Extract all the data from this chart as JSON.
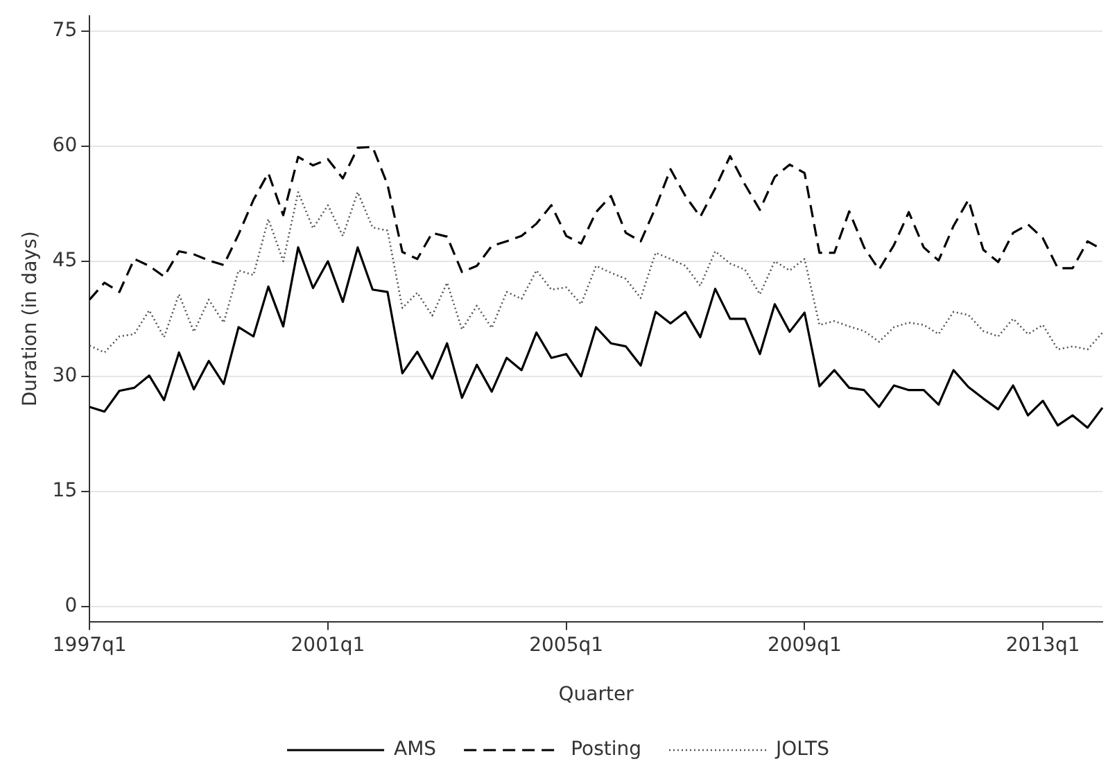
{
  "chart_data": {
    "type": "line",
    "xlabel": "Quarter",
    "ylabel": "Duration (in days)",
    "categories": [
      "1997q1",
      null,
      null,
      null,
      null,
      null,
      null,
      null,
      null,
      null,
      null,
      null,
      null,
      null,
      null,
      null,
      "2001q1",
      null,
      null,
      null,
      null,
      null,
      null,
      null,
      null,
      null,
      null,
      null,
      null,
      null,
      null,
      null,
      "2005q1",
      null,
      null,
      null,
      null,
      null,
      null,
      null,
      null,
      null,
      null,
      null,
      null,
      null,
      null,
      null,
      "2009q1",
      null,
      null,
      null,
      null,
      null,
      null,
      null,
      null,
      null,
      null,
      null,
      null,
      null,
      null,
      null,
      "2013q1",
      null,
      null,
      null,
      null
    ],
    "series": [
      {
        "name": "AMS",
        "color": "#000000",
        "line_style": "solid",
        "values": [
          26.0,
          25.4,
          28.1,
          28.5,
          30.1,
          26.9,
          33.1,
          28.3,
          32.0,
          29.0,
          36.4,
          35.2,
          41.7,
          36.5,
          46.8,
          41.5,
          45.0,
          39.7,
          46.8,
          41.3,
          41.0,
          30.4,
          33.2,
          29.7,
          34.3,
          27.2,
          31.5,
          28.0,
          32.4,
          30.8,
          35.7,
          32.4,
          32.9,
          30.0,
          36.4,
          34.3,
          33.9,
          31.4,
          38.4,
          36.9,
          38.4,
          35.1,
          41.4,
          37.5,
          37.5,
          32.9,
          39.4,
          35.8,
          38.3,
          28.7,
          30.8,
          28.5,
          28.2,
          26.0,
          28.8,
          28.2,
          28.2,
          26.3,
          30.8,
          28.6,
          27.1,
          25.7,
          28.8,
          24.9,
          26.8,
          23.6,
          24.9,
          23.3,
          25.9
        ]
      },
      {
        "name": "Posting",
        "color": "#000000",
        "line_style": "dashed",
        "values": [
          40.0,
          42.2,
          41.0,
          45.3,
          44.4,
          43.0,
          46.3,
          45.9,
          45.1,
          44.5,
          48.5,
          53.0,
          56.5,
          51.0,
          58.6,
          57.5,
          58.3,
          55.8,
          59.8,
          59.9,
          55.0,
          46.2,
          45.3,
          48.7,
          48.2,
          43.6,
          44.4,
          47.0,
          47.6,
          48.3,
          49.9,
          52.3,
          48.3,
          47.3,
          51.4,
          53.5,
          48.7,
          47.6,
          52.0,
          57.0,
          53.5,
          50.8,
          54.5,
          58.7,
          55.0,
          51.7,
          56.0,
          57.6,
          56.5,
          46.1,
          46.1,
          51.5,
          46.8,
          43.9,
          47.1,
          51.4,
          46.8,
          45.1,
          49.6,
          53.0,
          46.5,
          44.9,
          48.7,
          49.8,
          48.0,
          44.1,
          44.1,
          47.6,
          46.5
        ]
      },
      {
        "name": "JOLTS",
        "color": "#555555",
        "line_style": "dotted",
        "values": [
          34.0,
          33.1,
          35.2,
          35.5,
          38.6,
          35.1,
          40.7,
          35.8,
          40.0,
          37.0,
          43.8,
          43.2,
          50.5,
          45.0,
          54.0,
          49.3,
          52.3,
          48.3,
          54.0,
          49.4,
          49.0,
          38.9,
          40.9,
          37.9,
          42.2,
          36.1,
          39.2,
          36.3,
          41.0,
          40.1,
          43.8,
          41.3,
          41.6,
          39.4,
          44.4,
          43.5,
          42.7,
          40.2,
          46.1,
          45.3,
          44.4,
          41.8,
          46.3,
          44.7,
          43.9,
          40.7,
          45.0,
          43.8,
          45.3,
          36.7,
          37.2,
          36.5,
          35.9,
          34.5,
          36.4,
          37.0,
          36.7,
          35.5,
          38.4,
          38.0,
          35.9,
          35.2,
          37.5,
          35.5,
          36.7,
          33.5,
          33.9,
          33.5,
          35.7
        ]
      }
    ],
    "ylim": [
      -2,
      77
    ],
    "yticks": [
      0,
      15,
      30,
      45,
      60,
      75
    ],
    "grid": "y",
    "legend": "bottom",
    "marker": "none"
  }
}
